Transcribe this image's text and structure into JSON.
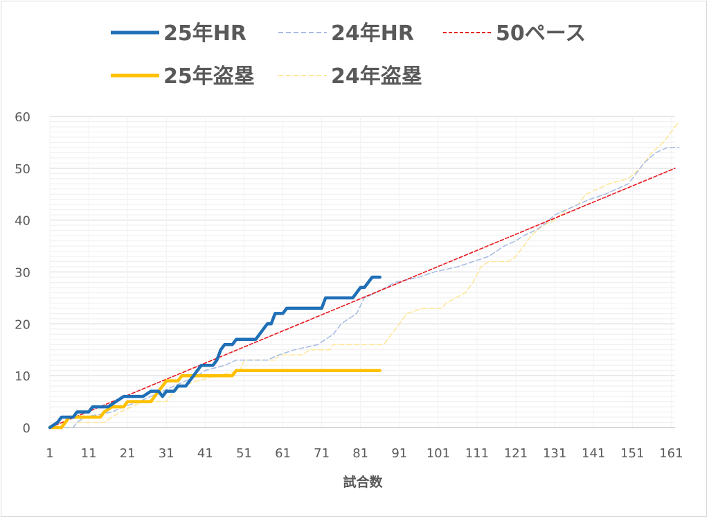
{
  "chart_data": {
    "type": "line",
    "xlabel": "試合数",
    "ylabel": "",
    "xlim": [
      1,
      162
    ],
    "ylim": [
      0,
      60
    ],
    "x_ticks": [
      1,
      11,
      21,
      31,
      41,
      51,
      61,
      71,
      81,
      91,
      101,
      111,
      121,
      131,
      141,
      151,
      161
    ],
    "y_ticks": [
      0,
      10,
      20,
      30,
      40,
      50,
      60
    ],
    "grid": "horizontal minor",
    "legend_position": "top",
    "series": [
      {
        "name": "25年HR",
        "color": "#1f6fb7",
        "style": "solid",
        "points": [
          [
            1,
            0
          ],
          [
            3,
            1
          ],
          [
            4,
            2
          ],
          [
            7,
            2
          ],
          [
            8,
            3
          ],
          [
            11,
            3
          ],
          [
            12,
            4
          ],
          [
            16,
            4
          ],
          [
            18,
            5
          ],
          [
            20,
            6
          ],
          [
            25,
            6
          ],
          [
            27,
            7
          ],
          [
            29,
            7
          ],
          [
            30,
            6
          ],
          [
            31,
            7
          ],
          [
            33,
            7
          ],
          [
            34,
            8
          ],
          [
            36,
            8
          ],
          [
            37,
            9
          ],
          [
            38,
            10
          ],
          [
            39,
            11
          ],
          [
            40,
            12
          ],
          [
            43,
            12
          ],
          [
            44,
            13
          ],
          [
            45,
            15
          ],
          [
            46,
            16
          ],
          [
            48,
            16
          ],
          [
            49,
            17
          ],
          [
            54,
            17
          ],
          [
            55,
            18
          ],
          [
            56,
            19
          ],
          [
            57,
            20
          ],
          [
            58,
            20
          ],
          [
            59,
            22
          ],
          [
            61,
            22
          ],
          [
            62,
            23
          ],
          [
            71,
            23
          ],
          [
            72,
            25
          ],
          [
            79,
            25
          ],
          [
            80,
            26
          ],
          [
            81,
            27
          ],
          [
            82,
            27
          ],
          [
            83,
            28
          ],
          [
            84,
            29
          ],
          [
            86,
            29
          ]
        ]
      },
      {
        "name": "24年HR",
        "color": "#a9bde3",
        "style": "dashed",
        "points": [
          [
            1,
            0
          ],
          [
            7,
            0
          ],
          [
            8,
            1
          ],
          [
            10,
            2
          ],
          [
            17,
            3
          ],
          [
            20,
            4
          ],
          [
            24,
            5
          ],
          [
            27,
            6
          ],
          [
            30,
            7
          ],
          [
            33,
            8
          ],
          [
            36,
            9
          ],
          [
            39,
            10
          ],
          [
            41,
            11
          ],
          [
            46,
            12
          ],
          [
            49,
            13
          ],
          [
            57,
            13
          ],
          [
            60,
            14
          ],
          [
            64,
            15
          ],
          [
            70,
            16
          ],
          [
            72,
            17
          ],
          [
            74,
            18
          ],
          [
            76,
            20
          ],
          [
            80,
            22
          ],
          [
            82,
            25
          ],
          [
            85,
            26
          ],
          [
            90,
            28
          ],
          [
            96,
            29
          ],
          [
            100,
            30
          ],
          [
            106,
            31
          ],
          [
            110,
            32
          ],
          [
            114,
            33
          ],
          [
            118,
            35
          ],
          [
            121,
            36
          ],
          [
            123,
            37
          ],
          [
            126,
            38
          ],
          [
            128,
            39
          ],
          [
            131,
            41
          ],
          [
            134,
            42
          ],
          [
            137,
            43
          ],
          [
            140,
            44
          ],
          [
            144,
            45
          ],
          [
            147,
            46
          ],
          [
            150,
            47
          ],
          [
            152,
            49
          ],
          [
            154,
            51
          ],
          [
            157,
            53
          ],
          [
            160,
            54
          ],
          [
            163,
            54
          ]
        ]
      },
      {
        "name": "50ペース",
        "color": "#e8131a",
        "style": "dotted",
        "points": [
          [
            1,
            0
          ],
          [
            162,
            50
          ]
        ]
      },
      {
        "name": "25年盗塁",
        "color": "#ffc000",
        "style": "solid",
        "points": [
          [
            1,
            0
          ],
          [
            4,
            0
          ],
          [
            5,
            1
          ],
          [
            6,
            2
          ],
          [
            14,
            2
          ],
          [
            15,
            3
          ],
          [
            17,
            4
          ],
          [
            20,
            4
          ],
          [
            21,
            5
          ],
          [
            27,
            5
          ],
          [
            28,
            6
          ],
          [
            29,
            7
          ],
          [
            30,
            8
          ],
          [
            31,
            9
          ],
          [
            34,
            9
          ],
          [
            35,
            10
          ],
          [
            48,
            10
          ],
          [
            49,
            11
          ],
          [
            86,
            11
          ]
        ]
      },
      {
        "name": "24年盗塁",
        "color": "#ffe699",
        "style": "dashed",
        "points": [
          [
            1,
            0
          ],
          [
            7,
            0
          ],
          [
            8,
            1
          ],
          [
            15,
            1
          ],
          [
            17,
            2
          ],
          [
            19,
            3
          ],
          [
            22,
            4
          ],
          [
            25,
            5
          ],
          [
            31,
            5
          ],
          [
            33,
            7
          ],
          [
            35,
            8
          ],
          [
            39,
            9
          ],
          [
            44,
            10
          ],
          [
            50,
            11
          ],
          [
            51,
            13
          ],
          [
            59,
            13
          ],
          [
            60,
            14
          ],
          [
            66,
            14
          ],
          [
            68,
            15
          ],
          [
            73,
            15
          ],
          [
            74,
            16
          ],
          [
            87,
            16
          ],
          [
            89,
            18
          ],
          [
            91,
            20
          ],
          [
            93,
            22
          ],
          [
            97,
            23
          ],
          [
            102,
            23
          ],
          [
            103,
            24
          ],
          [
            108,
            26
          ],
          [
            110,
            28
          ],
          [
            112,
            31
          ],
          [
            114,
            32
          ],
          [
            119,
            32
          ],
          [
            121,
            33
          ],
          [
            123,
            35
          ],
          [
            125,
            37
          ],
          [
            128,
            39
          ],
          [
            131,
            40
          ],
          [
            134,
            42
          ],
          [
            137,
            43
          ],
          [
            139,
            45
          ],
          [
            142,
            46
          ],
          [
            145,
            47
          ],
          [
            150,
            48
          ],
          [
            153,
            50
          ],
          [
            156,
            53
          ],
          [
            159,
            55
          ],
          [
            162,
            58
          ],
          [
            163,
            59
          ]
        ]
      }
    ]
  }
}
